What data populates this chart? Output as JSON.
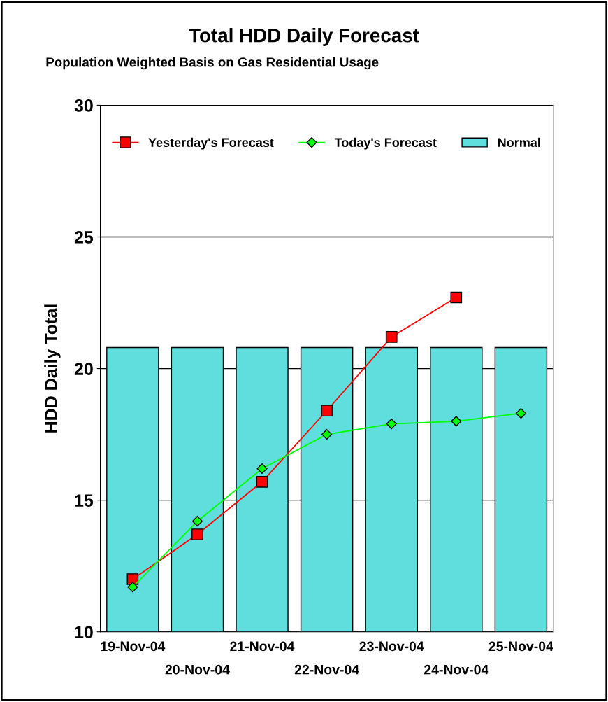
{
  "chart_data": {
    "type": "bar",
    "title": "Total HDD Daily Forecast",
    "subtitle": "Population Weighted Basis on Gas Residential Usage",
    "ylabel": "HDD Daily Total",
    "categories": [
      "19-Nov-04",
      "20-Nov-04",
      "21-Nov-04",
      "22-Nov-04",
      "23-Nov-04",
      "24-Nov-04",
      "25-Nov-04"
    ],
    "series": [
      {
        "name": "Yesterday's Forecast",
        "type": "line",
        "color": "#ff0000",
        "marker": "square",
        "values": [
          12.0,
          13.7,
          15.7,
          18.4,
          21.2,
          22.7,
          null
        ]
      },
      {
        "name": "Today's Forecast",
        "type": "line",
        "color": "#00ff00",
        "marker": "diamond",
        "values": [
          11.7,
          14.2,
          16.2,
          17.5,
          17.9,
          18.0,
          18.3
        ]
      },
      {
        "name": "Normal",
        "color": "#60dede",
        "values": [
          20.8,
          20.8,
          20.8,
          20.8,
          20.8,
          20.8,
          20.8
        ]
      }
    ],
    "ylim": [
      10,
      30
    ],
    "yticks": [
      10,
      15,
      20,
      25,
      30
    ],
    "grid": "y",
    "legend": "top"
  }
}
